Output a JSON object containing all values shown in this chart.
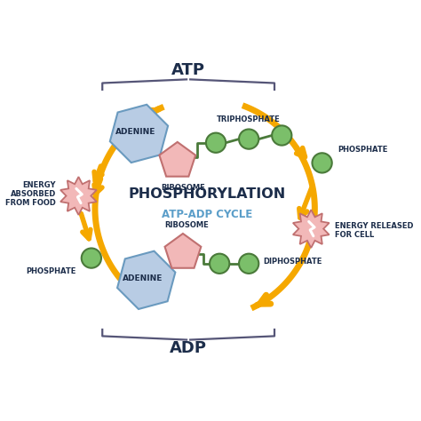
{
  "title_main": "PHOSPHORYLATION",
  "title_sub": "ATP-ADP CYCLE",
  "label_atp": "ATP",
  "label_adp": "ADP",
  "label_adenine_top": "ADENINE",
  "label_ribosome_top": "RIBOSOME",
  "label_triphosphate": "TRIPHOSPHATE",
  "label_phosphate_right": "PHOSPHATE",
  "label_energy_released": "ENERGY RELEASED\nFOR CELL",
  "label_diphosphate": "DIPHOSPHATE",
  "label_adenine_bot": "ADENINE",
  "label_ribosome_bot": "RIBOSOME",
  "label_phosphate_left": "PHOSPHATE",
  "label_energy_absorbed": "ENERGY\nABSORBED\nFROM FOOD",
  "bg_color": "#ffffff",
  "arrow_color": "#F5A800",
  "arrow_inner": "#FFCC44",
  "circle_fill": "#7BBF6A",
  "circle_edge": "#4A7A3A",
  "adenine_fill": "#B8CCE4",
  "adenine_edge": "#6A9ABF",
  "ribosome_fill": "#F2B8B8",
  "ribosome_edge": "#C07070",
  "energy_fill": "#F2B8B8",
  "energy_edge": "#C07070",
  "text_dark": "#1C2D4A",
  "text_blue": "#5B9EC9",
  "brace_color": "#555577",
  "connector_color": "#777799"
}
